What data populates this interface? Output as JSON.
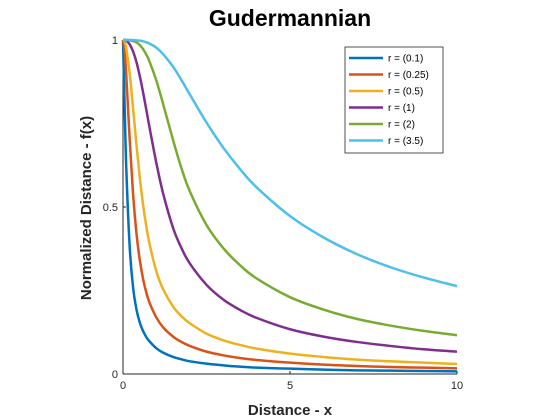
{
  "chart_data": {
    "type": "line",
    "title": "Gudermannian",
    "xlabel": "Distance - x",
    "ylabel": "Normalized Distance - f(x)",
    "xlim": [
      0,
      10
    ],
    "ylim": [
      0,
      1
    ],
    "xticks": [
      0,
      5,
      10
    ],
    "xtick_labels": [
      "0",
      "5",
      "10"
    ],
    "yticks": [
      0,
      0.5,
      1
    ],
    "ytick_labels": [
      "0",
      "0.5",
      "1"
    ],
    "grid": false,
    "legend_position": "top-right",
    "x": [
      0,
      0.05,
      0.1,
      0.2,
      0.3,
      0.4,
      0.5,
      0.6,
      0.7,
      0.8,
      1,
      1.2,
      1.5,
      1.75,
      2,
      2.5,
      3,
      3.5,
      4,
      5,
      6,
      7,
      8,
      9,
      10
    ],
    "series": [
      {
        "name": "r = (0.1)",
        "color": "#0072BD",
        "values": [
          1,
          0.796,
          0.611,
          0.381,
          0.261,
          0.195,
          0.155,
          0.129,
          0.11,
          0.097,
          0.077,
          0.064,
          0.051,
          0.044,
          0.038,
          0.031,
          0.026,
          0.022,
          0.019,
          0.016,
          0.013,
          0.011,
          0.01,
          0.009,
          0.008
        ]
      },
      {
        "name": "r = (0.25)",
        "color": "#D95319",
        "values": [
          1,
          0.965,
          0.891,
          0.703,
          0.541,
          0.424,
          0.343,
          0.285,
          0.243,
          0.212,
          0.169,
          0.14,
          0.112,
          0.096,
          0.084,
          0.067,
          0.056,
          0.048,
          0.042,
          0.034,
          0.028,
          0.024,
          0.021,
          0.019,
          0.017
        ]
      },
      {
        "name": "r = (0.5)",
        "color": "#EDB120",
        "values": [
          1,
          0.995,
          0.973,
          0.9,
          0.798,
          0.689,
          0.591,
          0.508,
          0.441,
          0.387,
          0.307,
          0.254,
          0.202,
          0.173,
          0.152,
          0.121,
          0.101,
          0.087,
          0.076,
          0.061,
          0.051,
          0.043,
          0.038,
          0.034,
          0.03
        ]
      },
      {
        "name": "r = (1)",
        "color": "#7E2F8E",
        "values": [
          1,
          1.0,
          0.998,
          0.987,
          0.966,
          0.935,
          0.893,
          0.844,
          0.79,
          0.735,
          0.631,
          0.541,
          0.437,
          0.377,
          0.331,
          0.267,
          0.223,
          0.192,
          0.168,
          0.134,
          0.112,
          0.096,
          0.084,
          0.074,
          0.067
        ]
      },
      {
        "name": "r = (2)",
        "color": "#77AC30",
        "values": [
          1,
          1.0,
          1.0,
          0.999,
          0.997,
          0.993,
          0.985,
          0.973,
          0.956,
          0.934,
          0.878,
          0.809,
          0.7,
          0.616,
          0.547,
          0.446,
          0.377,
          0.326,
          0.286,
          0.23,
          0.193,
          0.165,
          0.145,
          0.129,
          0.116
        ]
      },
      {
        "name": "r = (3.5)",
        "color": "#4DBEEE",
        "values": [
          1,
          1.0,
          1.0,
          1.0,
          1.0,
          0.999,
          0.998,
          0.996,
          0.993,
          0.989,
          0.977,
          0.958,
          0.92,
          0.88,
          0.837,
          0.753,
          0.678,
          0.614,
          0.559,
          0.473,
          0.409,
          0.359,
          0.32,
          0.289,
          0.263
        ]
      }
    ]
  }
}
